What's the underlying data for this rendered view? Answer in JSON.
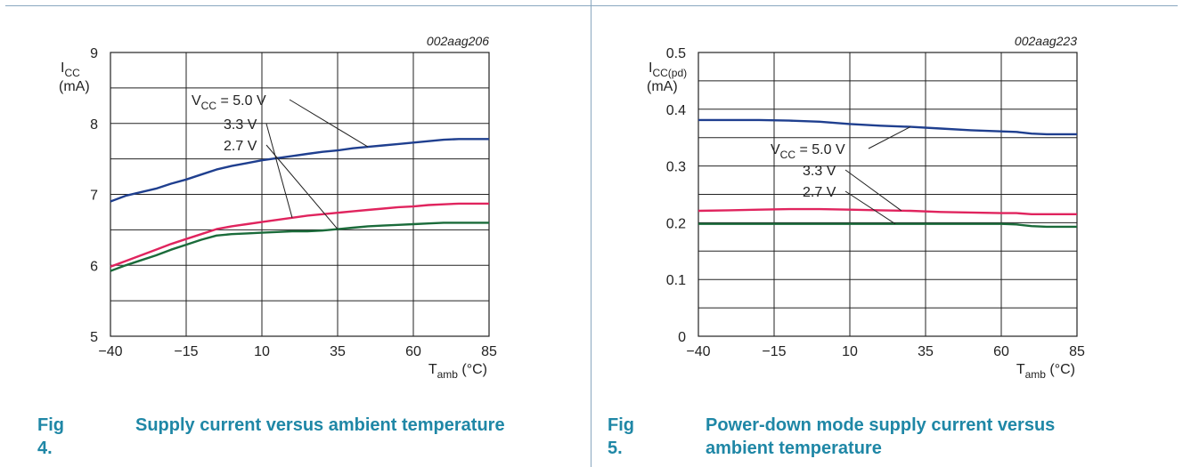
{
  "chart_data": [
    {
      "type": "line",
      "figure_label": "Fig 4.",
      "caption": "Supply current versus ambient temperature",
      "code": "002aag206",
      "ylabel_main": "I",
      "ylabel_sub": "CC",
      "ylabel_unit": "(mA)",
      "xlabel_main": "T",
      "xlabel_sub": "amb",
      "xlabel_unit": " (°C)",
      "xlim": [
        -40,
        85
      ],
      "ylim": [
        5,
        9
      ],
      "xticks": [
        -40,
        -15,
        10,
        35,
        60,
        85
      ],
      "xtick_labels": [
        "−40",
        "−15",
        "10",
        "35",
        "60",
        "85"
      ],
      "yticks": [
        5,
        6,
        7,
        8,
        9
      ],
      "ytick_labels": [
        "5",
        "6",
        "7",
        "8",
        "9"
      ],
      "legend_prefix": "V",
      "legend_prefix_sub": "CC",
      "series": [
        {
          "name": "= 5.0 V",
          "color": "#1f3f8f",
          "x": [
            -40,
            -35,
            -30,
            -25,
            -20,
            -15,
            -10,
            -5,
            0,
            5,
            10,
            15,
            20,
            25,
            30,
            35,
            40,
            45,
            50,
            55,
            60,
            65,
            70,
            75,
            80,
            85
          ],
          "y": [
            6.9,
            6.98,
            7.03,
            7.08,
            7.15,
            7.21,
            7.28,
            7.35,
            7.4,
            7.44,
            7.48,
            7.51,
            7.54,
            7.57,
            7.6,
            7.62,
            7.65,
            7.67,
            7.69,
            7.71,
            7.73,
            7.75,
            7.77,
            7.78,
            7.78,
            7.78
          ]
        },
        {
          "name": "3.3 V",
          "color": "#e0245e",
          "x": [
            -40,
            -35,
            -30,
            -25,
            -20,
            -15,
            -10,
            -5,
            0,
            5,
            10,
            15,
            20,
            25,
            30,
            35,
            40,
            45,
            50,
            55,
            60,
            65,
            70,
            75,
            80,
            85
          ],
          "y": [
            5.98,
            6.06,
            6.14,
            6.22,
            6.3,
            6.37,
            6.44,
            6.51,
            6.55,
            6.58,
            6.61,
            6.64,
            6.67,
            6.7,
            6.72,
            6.74,
            6.76,
            6.78,
            6.8,
            6.82,
            6.83,
            6.85,
            6.86,
            6.87,
            6.87,
            6.87
          ]
        },
        {
          "name": "2.7 V",
          "color": "#1a6b3a",
          "x": [
            -40,
            -35,
            -30,
            -25,
            -20,
            -15,
            -10,
            -5,
            0,
            5,
            10,
            15,
            20,
            25,
            30,
            35,
            40,
            45,
            50,
            55,
            60,
            65,
            70,
            75,
            80,
            85
          ],
          "y": [
            5.92,
            6.0,
            6.07,
            6.14,
            6.22,
            6.29,
            6.36,
            6.42,
            6.44,
            6.45,
            6.46,
            6.47,
            6.48,
            6.48,
            6.49,
            6.51,
            6.53,
            6.55,
            6.56,
            6.57,
            6.58,
            6.59,
            6.6,
            6.6,
            6.6,
            6.6
          ]
        }
      ]
    },
    {
      "type": "line",
      "figure_label": "Fig 5.",
      "caption": "Power-down mode supply current versus ambient temperature",
      "code": "002aag223",
      "ylabel_main": "I",
      "ylabel_sub": "CC(pd)",
      "ylabel_unit": "(mA)",
      "xlabel_main": "T",
      "xlabel_sub": "amb",
      "xlabel_unit": " (°C)",
      "xlim": [
        -40,
        85
      ],
      "ylim": [
        0,
        0.5
      ],
      "xticks": [
        -40,
        -15,
        10,
        35,
        60,
        85
      ],
      "xtick_labels": [
        "−40",
        "−15",
        "10",
        "35",
        "60",
        "85"
      ],
      "yticks": [
        0,
        0.1,
        0.2,
        0.3,
        0.4,
        0.5
      ],
      "ytick_labels": [
        "0",
        "0.1",
        "0.2",
        "0.3",
        "0.4",
        "0.5"
      ],
      "legend_prefix": "V",
      "legend_prefix_sub": "CC",
      "series": [
        {
          "name": "= 5.0 V",
          "color": "#1f3f8f",
          "x": [
            -40,
            -30,
            -20,
            -10,
            0,
            10,
            20,
            30,
            40,
            50,
            60,
            65,
            70,
            75,
            80,
            85
          ],
          "y": [
            0.381,
            0.381,
            0.381,
            0.38,
            0.378,
            0.374,
            0.371,
            0.369,
            0.366,
            0.363,
            0.361,
            0.36,
            0.357,
            0.356,
            0.356,
            0.356
          ]
        },
        {
          "name": "3.3 V",
          "color": "#e0245e",
          "x": [
            -40,
            -30,
            -20,
            -10,
            0,
            10,
            20,
            30,
            40,
            50,
            60,
            65,
            70,
            75,
            80,
            85
          ],
          "y": [
            0.221,
            0.222,
            0.223,
            0.224,
            0.224,
            0.223,
            0.222,
            0.221,
            0.219,
            0.218,
            0.217,
            0.217,
            0.215,
            0.215,
            0.215,
            0.215
          ]
        },
        {
          "name": "2.7 V",
          "color": "#1a6b3a",
          "x": [
            -40,
            -30,
            -20,
            -10,
            0,
            10,
            20,
            30,
            40,
            50,
            60,
            65,
            70,
            75,
            80,
            85
          ],
          "y": [
            0.198,
            0.198,
            0.198,
            0.198,
            0.198,
            0.198,
            0.198,
            0.198,
            0.198,
            0.198,
            0.198,
            0.197,
            0.194,
            0.193,
            0.193,
            0.193
          ]
        }
      ]
    }
  ]
}
